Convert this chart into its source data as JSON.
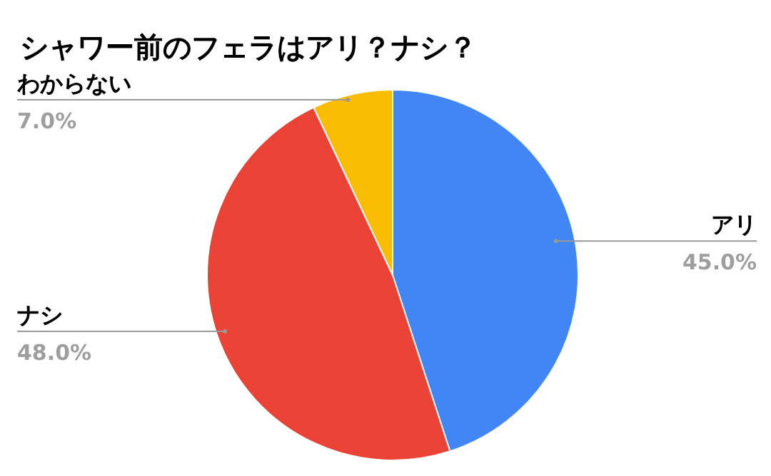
{
  "chart_data": {
    "type": "pie",
    "title": "シャワー前のフェラはアリ？ナシ？",
    "categories": [
      "アリ",
      "ナシ",
      "わからない"
    ],
    "values": [
      45,
      48,
      7
    ],
    "value_labels": [
      "45.0%",
      "48.0%",
      "7.0%"
    ],
    "colors": [
      "#4285f4",
      "#ea4335",
      "#fbbc04"
    ],
    "legend": false
  }
}
